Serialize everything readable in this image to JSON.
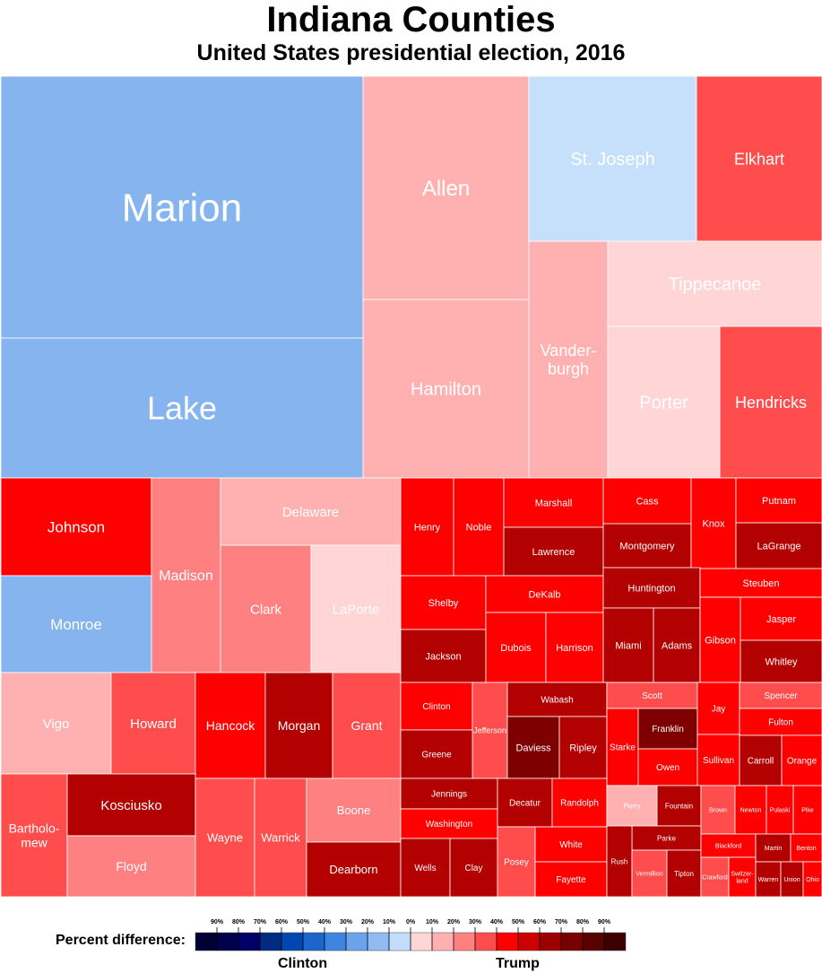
{
  "title": "Indiana Counties",
  "subtitle": "United States presidential election, 2016",
  "legend": {
    "label": "Percent difference:",
    "left_party": "Clinton",
    "right_party": "Trump",
    "ticks": [
      "90%",
      "80%",
      "70%",
      "60%",
      "50%",
      "40%",
      "30%",
      "20%",
      "10%",
      "0%",
      "10%",
      "20%",
      "30%",
      "40%",
      "50%",
      "60%",
      "70%",
      "80%",
      "90%"
    ],
    "colors": [
      "#000033",
      "#00004d",
      "#000066",
      "#002b80",
      "#0047b3",
      "#1a66cc",
      "#3d85e0",
      "#6aa3ea",
      "#8fbaf2",
      "#c4dcfb",
      "#ffd6d6",
      "#ffb0b0",
      "#ff8080",
      "#ff4d4d",
      "#ff0000",
      "#cc0000",
      "#9e0000",
      "#7a0000",
      "#590000",
      "#3d0000"
    ]
  },
  "chart_data": {
    "type": "treemap",
    "title": "Indiana Counties",
    "subtitle": "United States presidential election, 2016",
    "color_scale": "Percent difference: Clinton (blue) to Trump (red)",
    "groups": [
      {
        "counties": [
          {
            "name": "Marion",
            "winner": "Clinton",
            "margin_bin": "20-30%"
          },
          {
            "name": "Lake",
            "winner": "Clinton",
            "margin_bin": "20-30%"
          },
          {
            "name": "Allen",
            "winner": "Trump",
            "margin_bin": "10-20%"
          },
          {
            "name": "Hamilton",
            "winner": "Trump",
            "margin_bin": "10-20%"
          },
          {
            "name": "St. Joseph",
            "winner": "Clinton",
            "margin_bin": "0-10%"
          },
          {
            "name": "Elkhart",
            "winner": "Trump",
            "margin_bin": "30-40%"
          },
          {
            "name": "Vanderburgh",
            "winner": "Trump",
            "margin_bin": "10-20%"
          },
          {
            "name": "Tippecanoe",
            "winner": "Trump",
            "margin_bin": "0-10%"
          },
          {
            "name": "Porter",
            "winner": "Trump",
            "margin_bin": "0-10%"
          },
          {
            "name": "Hendricks",
            "winner": "Trump",
            "margin_bin": "30-40%"
          }
        ]
      },
      {
        "counties": [
          {
            "name": "Johnson",
            "winner": "Trump",
            "margin_bin": "40-50%"
          },
          {
            "name": "Monroe",
            "winner": "Clinton",
            "margin_bin": "20-30%"
          },
          {
            "name": "Madison",
            "winner": "Trump",
            "margin_bin": "20-30%"
          },
          {
            "name": "Delaware",
            "winner": "Trump",
            "margin_bin": "10-20%"
          },
          {
            "name": "Clark",
            "winner": "Trump",
            "margin_bin": "20-30%"
          },
          {
            "name": "LaPorte",
            "winner": "Trump",
            "margin_bin": "0-10%"
          },
          {
            "name": "Vigo",
            "winner": "Trump",
            "margin_bin": "10-20%"
          },
          {
            "name": "Howard",
            "winner": "Trump",
            "margin_bin": "30-40%"
          },
          {
            "name": "Hancock",
            "winner": "Trump",
            "margin_bin": "40-50%"
          },
          {
            "name": "Morgan",
            "winner": "Trump",
            "margin_bin": "50-60%"
          },
          {
            "name": "Grant",
            "winner": "Trump",
            "margin_bin": "30-40%"
          },
          {
            "name": "Bartholomew",
            "winner": "Trump",
            "margin_bin": "30-40%"
          },
          {
            "name": "Kosciusko",
            "winner": "Trump",
            "margin_bin": "50-60%"
          },
          {
            "name": "Floyd",
            "winner": "Trump",
            "margin_bin": "20-30%"
          },
          {
            "name": "Wayne",
            "winner": "Trump",
            "margin_bin": "30-40%"
          },
          {
            "name": "Warrick",
            "winner": "Trump",
            "margin_bin": "30-40%"
          },
          {
            "name": "Boone",
            "winner": "Trump",
            "margin_bin": "20-30%"
          },
          {
            "name": "Dearborn",
            "winner": "Trump",
            "margin_bin": "50-60%"
          }
        ]
      },
      {
        "counties": [
          {
            "name": "Henry",
            "winner": "Trump",
            "margin_bin": "40-50%"
          },
          {
            "name": "Noble",
            "winner": "Trump",
            "margin_bin": "40-50%"
          },
          {
            "name": "Marshall",
            "winner": "Trump",
            "margin_bin": "40-50%"
          },
          {
            "name": "Lawrence",
            "winner": "Trump",
            "margin_bin": "50-60%"
          },
          {
            "name": "Shelby",
            "winner": "Trump",
            "margin_bin": "40-50%"
          },
          {
            "name": "DeKalb",
            "winner": "Trump",
            "margin_bin": "40-50%"
          },
          {
            "name": "Jackson",
            "winner": "Trump",
            "margin_bin": "50-60%"
          },
          {
            "name": "Dubois",
            "winner": "Trump",
            "margin_bin": "40-50%"
          },
          {
            "name": "Harrison",
            "winner": "Trump",
            "margin_bin": "40-50%"
          },
          {
            "name": "Cass",
            "winner": "Trump",
            "margin_bin": "40-50%"
          },
          {
            "name": "Montgomery",
            "winner": "Trump",
            "margin_bin": "50-60%"
          },
          {
            "name": "Knox",
            "winner": "Trump",
            "margin_bin": "40-50%"
          },
          {
            "name": "Putnam",
            "winner": "Trump",
            "margin_bin": "40-50%"
          },
          {
            "name": "LaGrange",
            "winner": "Trump",
            "margin_bin": "50-60%"
          },
          {
            "name": "Huntington",
            "winner": "Trump",
            "margin_bin": "50-60%"
          },
          {
            "name": "Steuben",
            "winner": "Trump",
            "margin_bin": "40-50%"
          },
          {
            "name": "Miami",
            "winner": "Trump",
            "margin_bin": "50-60%"
          },
          {
            "name": "Adams",
            "winner": "Trump",
            "margin_bin": "50-60%"
          },
          {
            "name": "Gibson",
            "winner": "Trump",
            "margin_bin": "40-50%"
          },
          {
            "name": "Jasper",
            "winner": "Trump",
            "margin_bin": "40-50%"
          },
          {
            "name": "Whitley",
            "winner": "Trump",
            "margin_bin": "50-60%"
          },
          {
            "name": "Clinton",
            "winner": "Trump",
            "margin_bin": "40-50%"
          },
          {
            "name": "Jefferson",
            "winner": "Trump",
            "margin_bin": "30-40%"
          },
          {
            "name": "Wabash",
            "winner": "Trump",
            "margin_bin": "50-60%"
          },
          {
            "name": "Greene",
            "winner": "Trump",
            "margin_bin": "50-60%"
          },
          {
            "name": "Daviess",
            "winner": "Trump",
            "margin_bin": "60-70%"
          },
          {
            "name": "Ripley",
            "winner": "Trump",
            "margin_bin": "50-60%"
          },
          {
            "name": "Scott",
            "winner": "Trump",
            "margin_bin": "30-40%"
          },
          {
            "name": "Starke",
            "winner": "Trump",
            "margin_bin": "40-50%"
          },
          {
            "name": "Franklin",
            "winner": "Trump",
            "margin_bin": "60-70%"
          },
          {
            "name": "Owen",
            "winner": "Trump",
            "margin_bin": "40-50%"
          },
          {
            "name": "Jay",
            "winner": "Trump",
            "margin_bin": "40-50%"
          },
          {
            "name": "Spencer",
            "winner": "Trump",
            "margin_bin": "30-40%"
          },
          {
            "name": "Fulton",
            "winner": "Trump",
            "margin_bin": "40-50%"
          },
          {
            "name": "Sullivan",
            "winner": "Trump",
            "margin_bin": "40-50%"
          },
          {
            "name": "Carroll",
            "winner": "Trump",
            "margin_bin": "50-60%"
          },
          {
            "name": "Orange",
            "winner": "Trump",
            "margin_bin": "40-50%"
          },
          {
            "name": "Jennings",
            "winner": "Trump",
            "margin_bin": "50-60%"
          },
          {
            "name": "Washington",
            "winner": "Trump",
            "margin_bin": "40-50%"
          },
          {
            "name": "Decatur",
            "winner": "Trump",
            "margin_bin": "50-60%"
          },
          {
            "name": "Randolph",
            "winner": "Trump",
            "margin_bin": "40-50%"
          },
          {
            "name": "Wells",
            "winner": "Trump",
            "margin_bin": "50-60%"
          },
          {
            "name": "Clay",
            "winner": "Trump",
            "margin_bin": "50-60%"
          },
          {
            "name": "Posey",
            "winner": "Trump",
            "margin_bin": "30-40%"
          },
          {
            "name": "White",
            "winner": "Trump",
            "margin_bin": "40-50%"
          },
          {
            "name": "Fayette",
            "winner": "Trump",
            "margin_bin": "40-50%"
          },
          {
            "name": "Perry",
            "winner": "Trump",
            "margin_bin": "10-20%"
          },
          {
            "name": "Fountain",
            "winner": "Trump",
            "margin_bin": "50-60%"
          },
          {
            "name": "Parke",
            "winner": "Trump",
            "margin_bin": "50-60%"
          },
          {
            "name": "Rush",
            "winner": "Trump",
            "margin_bin": "50-60%"
          },
          {
            "name": "Vermillion",
            "winner": "Trump",
            "margin_bin": "30-40%"
          },
          {
            "name": "Tipton",
            "winner": "Trump",
            "margin_bin": "50-60%"
          },
          {
            "name": "Brown",
            "winner": "Trump",
            "margin_bin": "30-40%"
          },
          {
            "name": "Newton",
            "winner": "Trump",
            "margin_bin": "40-50%"
          },
          {
            "name": "Pulaski",
            "winner": "Trump",
            "margin_bin": "40-50%"
          },
          {
            "name": "Pike",
            "winner": "Trump",
            "margin_bin": "40-50%"
          },
          {
            "name": "Blackford",
            "winner": "Trump",
            "margin_bin": "40-50%"
          },
          {
            "name": "Martin",
            "winner": "Trump",
            "margin_bin": "50-60%"
          },
          {
            "name": "Benton",
            "winner": "Trump",
            "margin_bin": "40-50%"
          },
          {
            "name": "Crawford",
            "winner": "Trump",
            "margin_bin": "30-40%"
          },
          {
            "name": "Switzerland",
            "winner": "Trump",
            "margin_bin": "40-50%"
          },
          {
            "name": "Warren",
            "winner": "Trump",
            "margin_bin": "50-60%"
          },
          {
            "name": "Union",
            "winner": "Trump",
            "margin_bin": "50-60%"
          },
          {
            "name": "Ohio",
            "winner": "Trump",
            "margin_bin": "40-50%"
          }
        ]
      }
    ]
  }
}
